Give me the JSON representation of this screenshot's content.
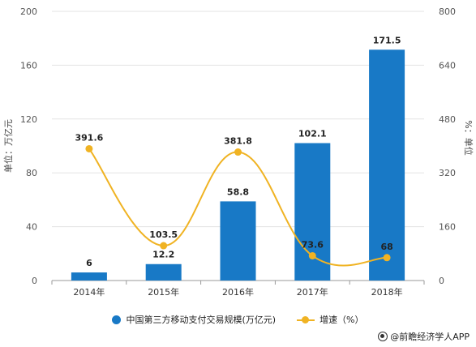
{
  "chart_data": {
    "type": "bar",
    "categories": [
      "2014年",
      "2015年",
      "2016年",
      "2017年",
      "2018年"
    ],
    "series": [
      {
        "name": "中国第三方移动支付交易规模(万亿元)",
        "type": "bar",
        "axis": "left",
        "values": [
          6,
          12.2,
          58.8,
          102.1,
          171.5
        ],
        "labels": [
          "6",
          "12.2",
          "58.8",
          "102.1",
          "171.5"
        ]
      },
      {
        "name": "增速（%）",
        "type": "line",
        "axis": "right",
        "smooth": true,
        "values": [
          391.6,
          103.5,
          381.8,
          73.6,
          68
        ],
        "labels": [
          "391.6",
          "103.5",
          "381.8",
          "73.6",
          "68"
        ]
      }
    ],
    "y_left": {
      "label": "单位：万亿元",
      "range": [
        0,
        200
      ],
      "ticks": [
        "0",
        "40",
        "80",
        "120",
        "160",
        "200"
      ]
    },
    "y_right": {
      "label": "%：单位",
      "range": [
        0,
        800
      ],
      "ticks": [
        "0",
        "160",
        "320",
        "480",
        "640",
        "800"
      ]
    },
    "grid": true,
    "legend_position": "bottom",
    "colors": {
      "bar": "#1879c6",
      "line": "#f0b323"
    }
  },
  "footer": {
    "credit": "@前瞻经济学人APP"
  }
}
